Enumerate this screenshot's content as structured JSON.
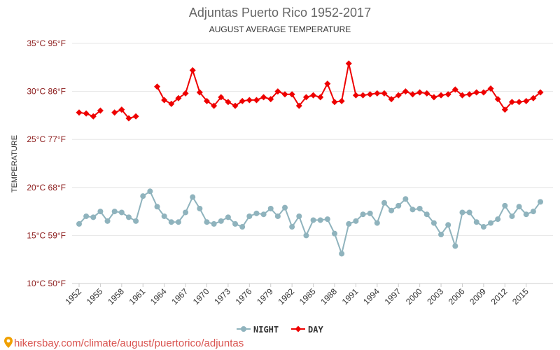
{
  "colors": {
    "night": "#8fb3bd",
    "day": "#ee0000",
    "ytick": "#8b1a1a",
    "source": "#d9534f"
  },
  "source_icon": "location-pin-icon",
  "source_text": "hikersbay.com/climate/august/puertorico/adjuntas",
  "chart_data": {
    "type": "line",
    "title": "Adjuntas Puerto Rico 1952-2017",
    "subtitle": "AUGUST AVERAGE TEMPERATURE",
    "ylabel": "TEMPERATURE",
    "xlabel": "",
    "ylim": [
      10,
      35
    ],
    "xlim": [
      1952,
      2017
    ],
    "grid": true,
    "legend_position": "bottom",
    "y_ticks": [
      {
        "value": 35,
        "label": "35°C 95°F"
      },
      {
        "value": 30,
        "label": "30°C 86°F"
      },
      {
        "value": 25,
        "label": "25°C 77°F"
      },
      {
        "value": 20,
        "label": "20°C 68°F"
      },
      {
        "value": 15,
        "label": "15°C 59°F"
      },
      {
        "value": 10,
        "label": "10°C 50°F"
      }
    ],
    "x_ticks": [
      1952,
      1955,
      1958,
      1961,
      1964,
      1967,
      1970,
      1973,
      1976,
      1979,
      1982,
      1985,
      1988,
      1991,
      1994,
      1997,
      2000,
      2003,
      2006,
      2009,
      2012,
      2015
    ],
    "x": [
      1952,
      1953,
      1954,
      1955,
      1956,
      1957,
      1958,
      1959,
      1960,
      1961,
      1962,
      1963,
      1964,
      1965,
      1966,
      1967,
      1968,
      1969,
      1970,
      1971,
      1972,
      1973,
      1974,
      1975,
      1976,
      1977,
      1978,
      1979,
      1980,
      1981,
      1982,
      1983,
      1984,
      1985,
      1986,
      1987,
      1988,
      1989,
      1990,
      1991,
      1992,
      1993,
      1994,
      1995,
      1996,
      1997,
      1998,
      1999,
      2000,
      2001,
      2002,
      2003,
      2004,
      2005,
      2006,
      2007,
      2008,
      2009,
      2010,
      2011,
      2012,
      2013,
      2014,
      2015,
      2016,
      2017
    ],
    "series": [
      {
        "name": "NIGHT",
        "color": "#8fb3bd",
        "marker": "circle",
        "values": [
          16.2,
          17.0,
          16.9,
          17.5,
          16.5,
          17.5,
          17.4,
          16.9,
          16.5,
          19.1,
          19.6,
          18.0,
          17.0,
          16.4,
          16.4,
          17.4,
          19.0,
          17.8,
          16.4,
          16.2,
          16.5,
          16.9,
          16.2,
          15.9,
          17.0,
          17.3,
          17.2,
          17.8,
          17.0,
          17.9,
          15.9,
          17.0,
          15.0,
          16.6,
          16.6,
          16.7,
          15.2,
          13.1,
          16.2,
          16.5,
          17.2,
          17.3,
          16.3,
          18.4,
          17.6,
          18.1,
          18.8,
          17.7,
          17.8,
          17.2,
          16.3,
          15.1,
          16.1,
          13.9,
          17.4,
          17.4,
          16.4,
          15.9,
          16.3,
          16.7,
          18.1,
          17.0,
          18.0,
          17.2,
          17.5,
          18.5
        ]
      },
      {
        "name": "DAY",
        "color": "#ee0000",
        "marker": "diamond",
        "values": [
          27.8,
          27.7,
          27.4,
          28.0,
          null,
          27.8,
          28.1,
          27.2,
          27.4,
          null,
          null,
          30.5,
          29.1,
          28.7,
          29.3,
          29.8,
          32.2,
          29.9,
          29.0,
          28.5,
          29.4,
          28.9,
          28.5,
          29.0,
          29.1,
          29.1,
          29.4,
          29.2,
          30.0,
          29.7,
          29.7,
          28.5,
          29.4,
          29.6,
          29.4,
          30.8,
          28.9,
          29.0,
          32.9,
          29.6,
          29.6,
          29.7,
          29.8,
          29.8,
          29.2,
          29.6,
          30.0,
          29.7,
          29.9,
          29.8,
          29.4,
          29.6,
          29.7,
          30.2,
          29.6,
          29.7,
          29.9,
          29.9,
          30.3,
          29.2,
          28.1,
          28.9,
          28.9,
          29.0,
          29.3,
          29.9
        ]
      }
    ]
  }
}
